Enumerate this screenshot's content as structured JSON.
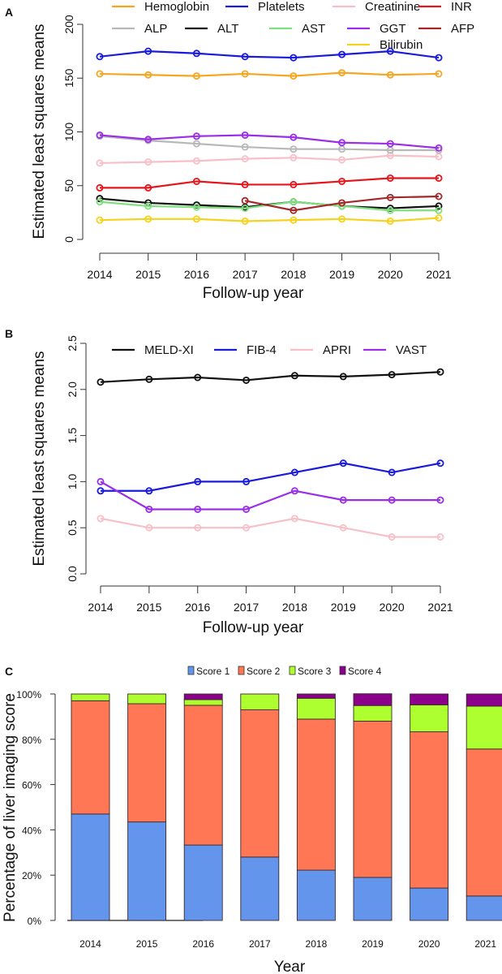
{
  "figure": {
    "panels": [
      "A",
      "B",
      "C"
    ]
  },
  "chart_data": [
    {
      "panel": "A",
      "type": "line",
      "title": "",
      "xlabel": "Follow-up year",
      "ylabel": "Estimated least squares means",
      "x": [
        "2014",
        "2015",
        "2016",
        "2017",
        "2018",
        "2019",
        "2020",
        "2021"
      ],
      "yticks": [
        "0",
        "50",
        "100",
        "150",
        "200"
      ],
      "ylim": [
        0,
        200
      ],
      "grid": false,
      "legend_position": "top",
      "series": [
        {
          "name": "Hemoglobin",
          "color": "#f5a623",
          "values": [
            154,
            153,
            152,
            154,
            152,
            155,
            153,
            154
          ]
        },
        {
          "name": "Platelets",
          "color": "#1a1adb",
          "values": [
            170,
            175,
            173,
            170,
            169,
            172,
            175,
            169
          ]
        },
        {
          "name": "Creatinine",
          "color": "#f7c0c8",
          "values": [
            71,
            72,
            73,
            75,
            76,
            74,
            78,
            77
          ]
        },
        {
          "name": "INR",
          "color": "#e8141b",
          "values": [
            48,
            48,
            54,
            51,
            51,
            54,
            57,
            57
          ]
        },
        {
          "name": "ALP",
          "color": "#b8b8b8",
          "values": [
            96,
            92,
            89,
            86,
            84,
            84,
            83,
            83
          ]
        },
        {
          "name": "ALT",
          "color": "#111111",
          "values": [
            38,
            34,
            32,
            30,
            35,
            31,
            29,
            31
          ]
        },
        {
          "name": "AST",
          "color": "#7ee07e",
          "values": [
            35,
            31,
            30,
            29,
            35,
            31,
            27,
            27
          ]
        },
        {
          "name": "GGT",
          "color": "#9b2ee8",
          "values": [
            97,
            93,
            96,
            97,
            95,
            90,
            89,
            85
          ]
        },
        {
          "name": "AFP",
          "color": "#a3282a",
          "values": [
            null,
            null,
            null,
            36,
            27,
            34,
            39,
            40
          ]
        },
        {
          "name": "Bilirubin",
          "color": "#f7d21c",
          "values": [
            18,
            19,
            19,
            17,
            18,
            19,
            17,
            20
          ]
        }
      ]
    },
    {
      "panel": "B",
      "type": "line",
      "title": "",
      "xlabel": "Follow-up year",
      "ylabel": "Estimated least squares means",
      "x": [
        "2014",
        "2015",
        "2016",
        "2017",
        "2018",
        "2019",
        "2020",
        "2021"
      ],
      "yticks": [
        "0.0",
        "0.5",
        "1.0",
        "1.5",
        "2.0",
        "2.5"
      ],
      "ylim": [
        0,
        2.5
      ],
      "grid": false,
      "legend_position": "top",
      "series": [
        {
          "name": "MELD-XI",
          "color": "#111111",
          "values": [
            2.08,
            2.11,
            2.13,
            2.1,
            2.15,
            2.14,
            2.16,
            2.19
          ]
        },
        {
          "name": "FIB-4",
          "color": "#1a1adb",
          "values": [
            0.9,
            0.9,
            1.0,
            1.0,
            1.1,
            1.2,
            1.1,
            1.2
          ]
        },
        {
          "name": "APRI",
          "color": "#f7c0c8",
          "values": [
            0.6,
            0.5,
            0.5,
            0.5,
            0.6,
            0.5,
            0.4,
            0.4
          ]
        },
        {
          "name": "VAST",
          "color": "#9b2ee8",
          "values": [
            1.0,
            0.7,
            0.7,
            0.7,
            0.9,
            0.8,
            0.8,
            0.8
          ]
        }
      ]
    },
    {
      "panel": "C",
      "type": "bar",
      "stacked": true,
      "title": "",
      "xlabel": "Year",
      "ylabel": "Percentage of liver imaging score",
      "categories": [
        "2014",
        "2015",
        "2016",
        "2017",
        "2018",
        "2019",
        "2020",
        "2021"
      ],
      "yticks": [
        "0%",
        "20%",
        "40%",
        "60%",
        "80%",
        "100%"
      ],
      "ylim": [
        0,
        100
      ],
      "grid": false,
      "legend_position": "top",
      "series": [
        {
          "name": "Score 1",
          "color": "#6495ed",
          "values": [
            47.0,
            43.5,
            33.3,
            28.0,
            22.2,
            19.0,
            14.3,
            10.8
          ]
        },
        {
          "name": "Score 2",
          "color": "#ff7755",
          "values": [
            50.0,
            52.2,
            61.7,
            65.0,
            66.7,
            69.0,
            69.0,
            64.9
          ]
        },
        {
          "name": "Score 3",
          "color": "#adff2f",
          "values": [
            3.0,
            4.3,
            2.5,
            7.0,
            9.2,
            6.9,
            11.9,
            18.9
          ]
        },
        {
          "name": "Score 4",
          "color": "#8b008b",
          "values": [
            0.0,
            0.0,
            2.5,
            0.0,
            1.9,
            5.2,
            4.8,
            5.4
          ]
        }
      ]
    }
  ]
}
